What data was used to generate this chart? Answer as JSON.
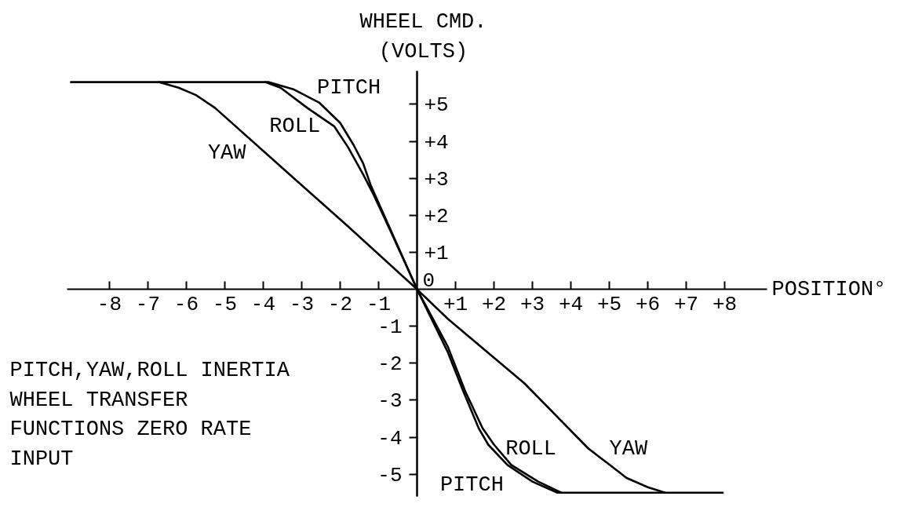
{
  "chart_data": {
    "type": "line",
    "xlabel": "POSITION°",
    "y2label": "WHEEL CMD. (VOLTS)",
    "annotations": [
      "PITCH,YAW,ROLL INERTIA WHEEL TRANSFER FUNCTIONS ZERO RATE INPUT"
    ],
    "xlim": [
      -9.1,
      9.1
    ],
    "ylim": [
      -5.6,
      5.9
    ],
    "y2lim": [
      -5.6,
      5.9
    ],
    "xticks": [
      -8,
      -7,
      -6,
      -5,
      -4,
      -3,
      -2,
      -1,
      {
        "value": 1,
        "label": "+1"
      },
      {
        "value": 2,
        "label": "+2"
      },
      {
        "value": 3,
        "label": "+3"
      },
      {
        "value": 4,
        "label": "+4"
      },
      {
        "value": 5,
        "label": "+5"
      },
      {
        "value": 6,
        "label": "+6"
      },
      {
        "value": 7,
        "label": "+7"
      },
      {
        "value": 8,
        "label": "+8"
      }
    ],
    "yticks": [
      -5,
      -4,
      -3,
      -2,
      -1
    ],
    "y2ticks": [
      0,
      {
        "value": 1,
        "label": "+1"
      },
      {
        "value": 2,
        "label": "+2"
      },
      {
        "value": 3,
        "label": "+3"
      },
      {
        "value": 4,
        "label": "+4"
      },
      {
        "value": 5,
        "label": "+5"
      }
    ],
    "series": [
      {
        "name": "PITCH",
        "color": "#000000",
        "x": [
          -9.0,
          -3.85,
          -3.2,
          -2.55,
          -2.0,
          -1.65,
          -1.4,
          -1.2,
          -0.75,
          0,
          0.8,
          1.2,
          1.6,
          1.85,
          2.35,
          3.0,
          3.65,
          7.95
        ],
        "values": [
          5.6,
          5.6,
          5.4,
          5.05,
          4.5,
          3.9,
          3.4,
          2.8,
          1.75,
          0,
          -1.7,
          -2.75,
          -3.75,
          -4.2,
          -4.75,
          -5.2,
          -5.5,
          -5.5
        ]
      },
      {
        "name": "ROLL",
        "color": "#000000",
        "x": [
          -3.95,
          -3.55,
          -2.85,
          -2.15,
          -1.8,
          -1.4,
          -1.15,
          -0.7,
          0,
          0.8,
          1.25,
          1.7,
          2.0,
          2.45,
          3.15,
          3.75
        ],
        "values": [
          5.6,
          5.45,
          4.9,
          4.4,
          3.85,
          3.1,
          2.6,
          1.6,
          0,
          -1.55,
          -2.75,
          -3.75,
          -4.2,
          -4.75,
          -5.2,
          -5.5
        ]
      },
      {
        "name": "YAW",
        "color": "#000000",
        "x": [
          -6.7,
          -6.2,
          -5.75,
          -5.25,
          -3.2,
          -1.85,
          0,
          0.8,
          2.8,
          4.45,
          4.95,
          5.45,
          6.0,
          6.45
        ],
        "values": [
          5.6,
          5.45,
          5.25,
          4.9,
          3.0,
          1.75,
          0,
          -0.8,
          -2.55,
          -4.3,
          -4.7,
          -5.1,
          -5.35,
          -5.5
        ]
      }
    ]
  }
}
